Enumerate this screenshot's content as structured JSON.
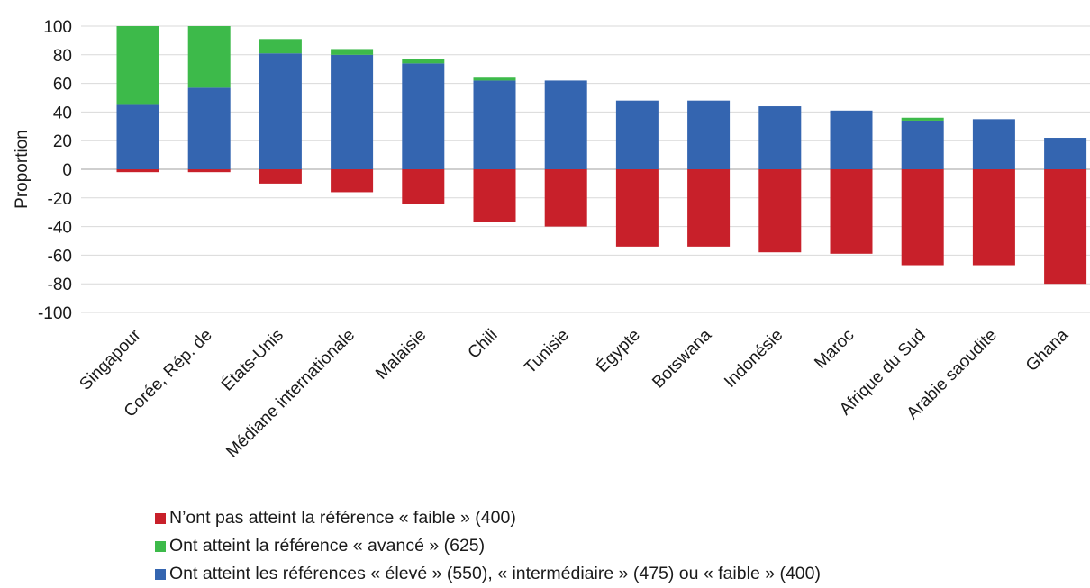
{
  "chart_data": {
    "type": "bar",
    "stacked": true,
    "ylabel": "Proportion",
    "ylim": [
      -100,
      100
    ],
    "yticks": [
      100,
      80,
      60,
      40,
      20,
      0,
      -20,
      -40,
      -60,
      -80,
      -100
    ],
    "grid": true,
    "legend_position": "bottom",
    "categories": [
      "Singapour",
      "Corée, Rép. de",
      "États-Unis",
      "Médiane internationale",
      "Malaisie",
      "Chili",
      "Tunisie",
      "Égypte",
      "Botswana",
      "Indonésie",
      "Maroc",
      "Afrique du Sud",
      "Arabie saoudite",
      "Ghana"
    ],
    "series": [
      {
        "name": "N’ont pas atteint la référence « faible » (400)",
        "color": "#c8202a",
        "values": [
          -2,
          -2,
          -10,
          -16,
          -24,
          -37,
          -40,
          -54,
          -54,
          -58,
          -59,
          -67,
          -67,
          -80
        ]
      },
      {
        "name": "Ont atteint la référence « avancé » (625)",
        "color": "#3dba4a",
        "values": [
          55,
          43,
          10,
          4,
          3,
          2,
          0,
          0,
          0,
          0,
          0,
          2,
          0,
          0
        ]
      },
      {
        "name": "Ont atteint les références « élevé » (550), « intermédiaire » (475) ou « faible » (400)",
        "color": "#3465b0",
        "values": [
          45,
          57,
          81,
          80,
          74,
          62,
          62,
          48,
          48,
          44,
          41,
          34,
          35,
          22
        ]
      }
    ]
  }
}
